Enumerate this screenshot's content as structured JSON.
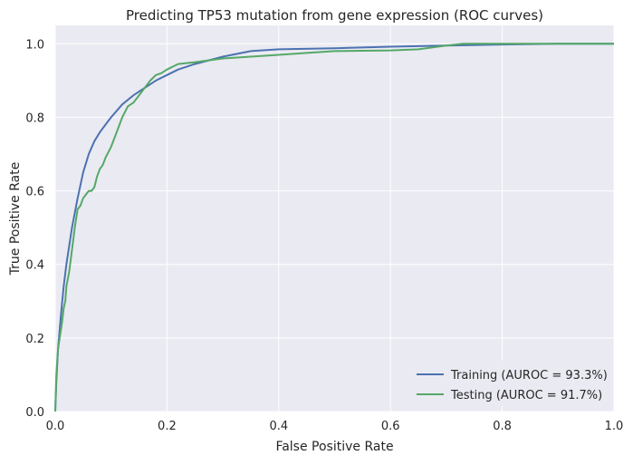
{
  "chart_data": {
    "type": "line",
    "title": "Predicting TP53 mutation from gene expression (ROC curves)",
    "xlabel": "False Positive Rate",
    "ylabel": "True Positive Rate",
    "xlim": [
      0.0,
      1.0
    ],
    "ylim": [
      0.0,
      1.05
    ],
    "x_ticks": [
      "0.0",
      "0.2",
      "0.4",
      "0.6",
      "0.8",
      "1.0"
    ],
    "y_ticks": [
      "0.0",
      "0.2",
      "0.4",
      "0.6",
      "0.8",
      "1.0"
    ],
    "grid": true,
    "legend_position": "lower-right",
    "background_color": "#eaeaf2",
    "series": [
      {
        "name": "Training (AUROC = 93.3%)",
        "color": "#4c72b0",
        "x": [
          0.0,
          0.002,
          0.005,
          0.01,
          0.015,
          0.02,
          0.03,
          0.04,
          0.05,
          0.06,
          0.07,
          0.08,
          0.09,
          0.1,
          0.12,
          0.14,
          0.16,
          0.18,
          0.2,
          0.22,
          0.25,
          0.3,
          0.35,
          0.4,
          0.5,
          0.6,
          0.7,
          0.8,
          0.9,
          1.0
        ],
        "y": [
          0.0,
          0.08,
          0.17,
          0.26,
          0.34,
          0.4,
          0.5,
          0.58,
          0.65,
          0.7,
          0.735,
          0.76,
          0.78,
          0.8,
          0.835,
          0.86,
          0.88,
          0.9,
          0.915,
          0.93,
          0.945,
          0.965,
          0.98,
          0.985,
          0.988,
          0.992,
          0.995,
          0.998,
          1.0,
          1.0
        ]
      },
      {
        "name": "Testing (AUROC = 91.7%)",
        "color": "#55a868",
        "x": [
          0.0,
          0.002,
          0.005,
          0.008,
          0.012,
          0.015,
          0.018,
          0.02,
          0.025,
          0.03,
          0.035,
          0.04,
          0.045,
          0.05,
          0.055,
          0.06,
          0.065,
          0.07,
          0.075,
          0.08,
          0.085,
          0.09,
          0.1,
          0.11,
          0.12,
          0.13,
          0.14,
          0.15,
          0.16,
          0.17,
          0.18,
          0.19,
          0.2,
          0.22,
          0.25,
          0.3,
          0.35,
          0.4,
          0.45,
          0.5,
          0.6,
          0.65,
          0.7,
          0.73,
          0.8,
          0.9,
          1.0
        ],
        "y": [
          0.0,
          0.1,
          0.17,
          0.2,
          0.24,
          0.28,
          0.3,
          0.34,
          0.38,
          0.44,
          0.5,
          0.55,
          0.56,
          0.58,
          0.59,
          0.6,
          0.6,
          0.61,
          0.64,
          0.66,
          0.67,
          0.69,
          0.72,
          0.76,
          0.8,
          0.83,
          0.84,
          0.86,
          0.88,
          0.9,
          0.915,
          0.92,
          0.93,
          0.945,
          0.95,
          0.96,
          0.965,
          0.97,
          0.975,
          0.98,
          0.982,
          0.985,
          0.995,
          1.0,
          1.0,
          1.0,
          1.0
        ]
      }
    ]
  }
}
